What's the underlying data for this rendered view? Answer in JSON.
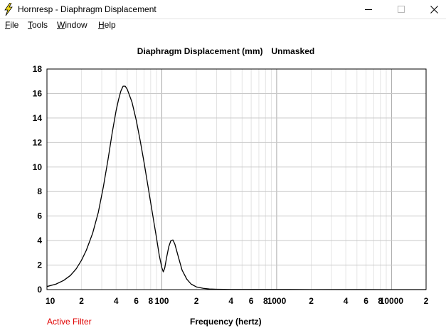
{
  "window": {
    "title": "Hornresp - Diaphragm Displacement",
    "minimize_icon": "minimize-icon",
    "maximize_icon": "maximize-icon",
    "close_icon": "close-icon",
    "app_icon": "lightning-bolt-icon",
    "app_icon_color": "#f2d91c"
  },
  "menu": {
    "items": [
      {
        "accel": "F",
        "rest": "ile"
      },
      {
        "accel": "T",
        "rest": "ools"
      },
      {
        "accel": "W",
        "rest": "indow"
      },
      {
        "accel": "H",
        "rest": "elp"
      }
    ]
  },
  "chart_header": {
    "title": "Diaphragm Displacement (mm)",
    "mask_state": "Unmasked"
  },
  "status": {
    "filter": "Active Filter",
    "filter_color": "#e00000"
  },
  "chart_data": {
    "type": "line",
    "xlabel": "Frequency (hertz)",
    "ylabel": "",
    "x_scale": "log",
    "xlim": [
      10,
      20000
    ],
    "ylim": [
      0,
      18
    ],
    "grid": true,
    "y_ticks": [
      0,
      2,
      4,
      6,
      8,
      10,
      12,
      14,
      16,
      18
    ],
    "x_tick_values": [
      10,
      20,
      40,
      60,
      80,
      100,
      200,
      400,
      600,
      800,
      1000,
      2000,
      4000,
      6000,
      8000,
      10000,
      20000
    ],
    "x_tick_labels": [
      "10",
      "2",
      "4",
      "6",
      "8",
      "100",
      "2",
      "4",
      "6",
      "8",
      "1000",
      "2",
      "4",
      "6",
      "8",
      "10000",
      "2"
    ],
    "series": [
      {
        "color": "#000000",
        "x": [
          10,
          12,
          14,
          16,
          18,
          20,
          22,
          25,
          28,
          31,
          34,
          37,
          40,
          42,
          44,
          46,
          48,
          50,
          55,
          60,
          65,
          70,
          75,
          80,
          85,
          90,
          95,
          100,
          103,
          106,
          110,
          115,
          120,
          125,
          130,
          140,
          150,
          165,
          180,
          200,
          230,
          260,
          300,
          350,
          400,
          500,
          700,
          1000,
          1300,
          2000,
          5000,
          10000,
          20000
        ],
        "y": [
          0.25,
          0.45,
          0.75,
          1.15,
          1.7,
          2.4,
          3.2,
          4.6,
          6.3,
          8.4,
          10.6,
          12.8,
          14.6,
          15.5,
          16.2,
          16.6,
          16.6,
          16.35,
          15.3,
          13.8,
          12.1,
          10.4,
          8.7,
          7.1,
          5.6,
          4.2,
          2.8,
          1.8,
          1.45,
          1.75,
          2.6,
          3.5,
          4.0,
          4.05,
          3.7,
          2.6,
          1.6,
          0.85,
          0.45,
          0.22,
          0.1,
          0.05,
          0.03,
          0.02,
          0.015,
          0.01,
          0.01,
          0.01,
          0.01,
          0.005,
          0.003,
          0.002,
          0.001
        ]
      }
    ]
  }
}
